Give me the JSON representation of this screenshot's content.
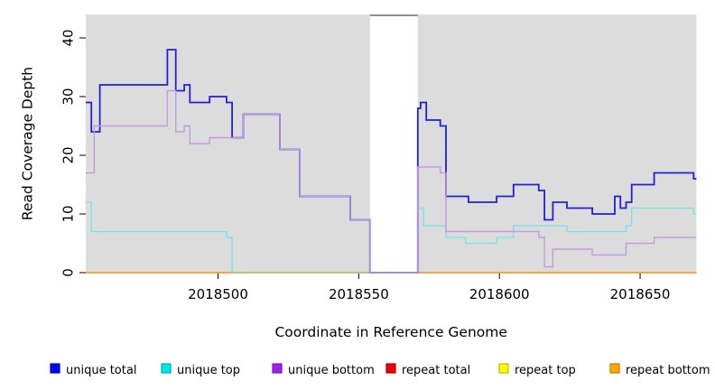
{
  "figure": {
    "background": "#ffffff",
    "panel_background": "#dcdcdc"
  },
  "chart_data": {
    "type": "line",
    "step": true,
    "title": "",
    "xlabel": "Coordinate in Reference Genome",
    "ylabel": "Read Coverage Depth",
    "xlim": [
      2018453,
      2018670
    ],
    "ylim": [
      0,
      44
    ],
    "x_ticks": [
      2018500,
      2018550,
      2018600,
      2018650
    ],
    "y_ticks": [
      0,
      10,
      20,
      30,
      40
    ],
    "grid": false,
    "legend_position": "bottom",
    "no_data_gap": {
      "from": 2018554,
      "to": 2018571,
      "fill": "#ffffff",
      "top_border_color": "#8f8f8f"
    },
    "zero_line_overlap": {
      "from": 2018505,
      "to": 2018554,
      "value": 0,
      "color": "#8cd6a0"
    },
    "series": [
      {
        "name": "unique total",
        "line_color": "#2121d3",
        "legend_fill": "#0000f5",
        "legend_stroke": "#0000bb",
        "line_width": 1.8,
        "segments": [
          [
            [
              2018453,
              29
            ],
            [
              2018455,
              24
            ],
            [
              2018458,
              32
            ],
            [
              2018482,
              38
            ],
            [
              2018485,
              31
            ],
            [
              2018488,
              32
            ],
            [
              2018490,
              29
            ],
            [
              2018497,
              30
            ],
            [
              2018503,
              29
            ],
            [
              2018505,
              23
            ],
            [
              2018509,
              27
            ],
            [
              2018522,
              21
            ],
            [
              2018529,
              13
            ],
            [
              2018547,
              9
            ],
            [
              2018554,
              0
            ],
            [
              2018571,
              28
            ],
            [
              2018572,
              29
            ],
            [
              2018574,
              26
            ],
            [
              2018579,
              25
            ],
            [
              2018581,
              13
            ],
            [
              2018589,
              12
            ],
            [
              2018599,
              13
            ],
            [
              2018605,
              15
            ],
            [
              2018614,
              14
            ],
            [
              2018616,
              9
            ],
            [
              2018619,
              12
            ],
            [
              2018624,
              11
            ],
            [
              2018633,
              10
            ],
            [
              2018641,
              13
            ],
            [
              2018643,
              11
            ],
            [
              2018645,
              12
            ],
            [
              2018647,
              15
            ],
            [
              2018655,
              17
            ],
            [
              2018669,
              16
            ],
            [
              2018670,
              16
            ]
          ]
        ]
      },
      {
        "name": "unique top",
        "line_color": "#70e4e8",
        "legend_fill": "#00e5ee",
        "legend_stroke": "#00aab4",
        "line_width": 1.3,
        "segments": [
          [
            [
              2018453,
              12
            ],
            [
              2018455,
              7
            ],
            [
              2018503,
              6
            ],
            [
              2018505,
              0
            ]
          ],
          [
            [
              2018571,
              11
            ],
            [
              2018573,
              8
            ],
            [
              2018581,
              6
            ],
            [
              2018588,
              5
            ],
            [
              2018599,
              6
            ],
            [
              2018605,
              8
            ],
            [
              2018624,
              7
            ],
            [
              2018645,
              8
            ],
            [
              2018647,
              11
            ],
            [
              2018669,
              10
            ],
            [
              2018670,
              10
            ]
          ]
        ]
      },
      {
        "name": "unique bottom",
        "line_color": "#c39bdf",
        "legend_fill": "#a020f0",
        "legend_stroke": "#7b18ba",
        "line_width": 1.4,
        "segments": [
          [
            [
              2018453,
              17
            ],
            [
              2018456,
              25
            ],
            [
              2018482,
              31
            ],
            [
              2018485,
              24
            ],
            [
              2018488,
              25
            ],
            [
              2018490,
              22
            ],
            [
              2018497,
              23
            ],
            [
              2018509,
              27
            ],
            [
              2018522,
              21
            ],
            [
              2018529,
              13
            ],
            [
              2018547,
              9
            ],
            [
              2018554,
              0
            ],
            [
              2018571,
              18
            ],
            [
              2018579,
              17
            ],
            [
              2018581,
              7
            ],
            [
              2018614,
              6
            ],
            [
              2018616,
              1
            ],
            [
              2018619,
              4
            ],
            [
              2018633,
              3
            ],
            [
              2018645,
              5
            ],
            [
              2018655,
              6
            ],
            [
              2018670,
              6
            ]
          ]
        ]
      },
      {
        "name": "repeat total",
        "line_color": "#e00000",
        "legend_fill": "#f00000",
        "legend_stroke": "#aa0000",
        "line_width": 1.3,
        "segments": [
          [
            [
              2018453,
              0
            ],
            [
              2018554,
              0
            ]
          ],
          [
            [
              2018571,
              0
            ],
            [
              2018670,
              0
            ]
          ]
        ]
      },
      {
        "name": "repeat top",
        "line_color": "#f0f000",
        "legend_fill": "#ffff00",
        "legend_stroke": "#bbbb00",
        "line_width": 1.3,
        "segments": [
          [
            [
              2018453,
              0
            ],
            [
              2018554,
              0
            ]
          ],
          [
            [
              2018571,
              0
            ],
            [
              2018670,
              0
            ]
          ]
        ]
      },
      {
        "name": "repeat bottom",
        "line_color": "#ff9e1f",
        "legend_fill": "#ffa500",
        "legend_stroke": "#c27c00",
        "line_width": 1.6,
        "segments": [
          [
            [
              2018453,
              0
            ],
            [
              2018554,
              0
            ]
          ],
          [
            [
              2018571,
              0
            ],
            [
              2018670,
              0
            ]
          ]
        ]
      }
    ]
  }
}
